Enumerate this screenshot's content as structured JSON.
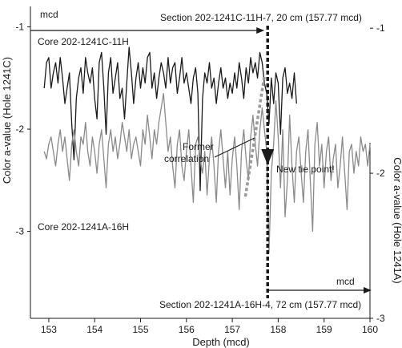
{
  "chart_data": {
    "type": "line",
    "xlabel": "Depth (mcd)",
    "ylabel_left": "Color a-value (Hole 1241C)",
    "ylabel_right": "Color a-value (Hole 1241A)",
    "xlim": [
      152.6,
      160
    ],
    "x_ticks": [
      153,
      154,
      155,
      156,
      157,
      158,
      159,
      160
    ],
    "left_ylim": [
      -3.85,
      -0.8
    ],
    "left_ticks": [
      -1,
      -2,
      -3
    ],
    "right_ylim": [
      -3.0,
      -0.85
    ],
    "right_ticks": [
      -1,
      -2,
      -3
    ],
    "annotations": {
      "mcd_top": "mcd",
      "section_top": "Section 202-1241C-11H-7, 20 cm (157.77 mcd)",
      "former_correlation_line1": "Former",
      "former_correlation_line2": "correlation",
      "new_tie_point": "New tie point!",
      "mcd_bottom": "mcd",
      "section_bottom": "Section 202-1241A-16H-4, 72 cm (157.77 mcd)"
    },
    "tie_point_depth": 157.77,
    "series": [
      {
        "name": "Core 202-1241C-11H",
        "axis": "left",
        "color": "#1a1a1a",
        "x": [
          152.9,
          152.95,
          153.0,
          153.05,
          153.1,
          153.15,
          153.2,
          153.25,
          153.3,
          153.35,
          153.4,
          153.45,
          153.5,
          153.55,
          153.6,
          153.65,
          153.7,
          153.75,
          153.8,
          153.85,
          153.9,
          153.95,
          154.0,
          154.05,
          154.1,
          154.15,
          154.2,
          154.25,
          154.3,
          154.35,
          154.4,
          154.45,
          154.5,
          154.55,
          154.6,
          154.65,
          154.7,
          154.75,
          154.8,
          154.85,
          154.9,
          154.95,
          155.0,
          155.05,
          155.1,
          155.15,
          155.2,
          155.25,
          155.3,
          155.35,
          155.4,
          155.45,
          155.5,
          155.55,
          155.6,
          155.65,
          155.7,
          155.75,
          155.8,
          155.85,
          155.9,
          155.95,
          156.0,
          156.05,
          156.1,
          156.15,
          156.2,
          156.25,
          156.3,
          156.35,
          156.4,
          156.45,
          156.5,
          156.55,
          156.6,
          156.65,
          156.7,
          156.75,
          156.8,
          156.85,
          156.9,
          156.95,
          157.0,
          157.05,
          157.1,
          157.15,
          157.2,
          157.25,
          157.3,
          157.35,
          157.4,
          157.45,
          157.5,
          157.55,
          157.6,
          157.65,
          157.7,
          157.75,
          157.8,
          157.85,
          157.9,
          157.95,
          158.0,
          158.05,
          158.1,
          158.15,
          158.2,
          158.25,
          158.3,
          158.35,
          158.4
        ],
        "values": [
          -1.6,
          -1.35,
          -1.3,
          -1.6,
          -1.45,
          -1.35,
          -1.55,
          -1.3,
          -1.5,
          -1.75,
          -1.6,
          -1.45,
          -1.95,
          -2.3,
          -1.7,
          -1.5,
          -1.4,
          -1.65,
          -1.3,
          -1.45,
          -1.55,
          -1.4,
          -1.7,
          -1.9,
          -1.35,
          -1.25,
          -1.6,
          -2.05,
          -1.45,
          -1.3,
          -1.65,
          -1.5,
          -1.35,
          -1.7,
          -1.6,
          -1.9,
          -1.55,
          -1.2,
          -1.45,
          -1.75,
          -1.5,
          -1.35,
          -1.6,
          -1.4,
          -1.55,
          -1.3,
          -1.25,
          -1.6,
          -1.45,
          -1.7,
          -1.5,
          -1.35,
          -1.45,
          -1.6,
          -1.3,
          -1.55,
          -1.4,
          -1.35,
          -1.65,
          -1.5,
          -1.3,
          -1.55,
          -1.45,
          -1.6,
          -1.75,
          -1.5,
          -1.4,
          -1.65,
          -2.6,
          -1.7,
          -1.45,
          -1.55,
          -1.35,
          -1.6,
          -1.5,
          -1.75,
          -1.55,
          -1.4,
          -1.6,
          -1.5,
          -1.7,
          -1.55,
          -1.65,
          -1.45,
          -1.6,
          -1.35,
          -1.5,
          -1.7,
          -1.4,
          -1.55,
          -1.3,
          -1.45,
          -1.35,
          -1.5,
          -1.25,
          -1.35,
          -1.55,
          -1.65,
          -1.95,
          -1.5,
          -1.75,
          -1.45,
          -1.55,
          -2.05,
          -1.5,
          -1.4,
          -1.65,
          -1.55,
          -1.7,
          -1.45,
          -1.75
        ]
      },
      {
        "name": "Core 202-1241A-16H",
        "axis": "right",
        "color": "#8a8a8a",
        "x": [
          152.9,
          152.95,
          153.0,
          153.05,
          153.1,
          153.15,
          153.2,
          153.25,
          153.3,
          153.35,
          153.4,
          153.45,
          153.5,
          153.55,
          153.6,
          153.65,
          153.7,
          153.75,
          153.8,
          153.85,
          153.9,
          153.95,
          154.0,
          154.05,
          154.1,
          154.15,
          154.2,
          154.25,
          154.3,
          154.35,
          154.4,
          154.45,
          154.5,
          154.55,
          154.6,
          154.65,
          154.7,
          154.75,
          154.8,
          154.85,
          154.9,
          154.95,
          155.0,
          155.05,
          155.1,
          155.15,
          155.2,
          155.25,
          155.3,
          155.35,
          155.4,
          155.45,
          155.5,
          155.55,
          155.6,
          155.65,
          155.7,
          155.75,
          155.8,
          155.85,
          155.9,
          155.95,
          156.0,
          156.05,
          156.1,
          156.15,
          156.2,
          156.25,
          156.3,
          156.35,
          156.4,
          156.45,
          156.5,
          156.55,
          156.6,
          156.65,
          156.7,
          156.75,
          156.8,
          156.85,
          156.9,
          156.95,
          157.0,
          157.05,
          157.1,
          157.15,
          157.2,
          157.25,
          157.3,
          157.35,
          157.4,
          157.45,
          157.5,
          157.55,
          157.6,
          157.65,
          157.7,
          157.75,
          157.8,
          157.85,
          157.9,
          157.95,
          158.0,
          158.05,
          158.1,
          158.15,
          158.2,
          158.25,
          158.3,
          158.35,
          158.4,
          158.45,
          158.5,
          158.55,
          158.6,
          158.65,
          158.7,
          158.75,
          158.8,
          158.85,
          158.9,
          158.95,
          159.0,
          159.05,
          159.1,
          159.15,
          159.2,
          159.25,
          159.3,
          159.35,
          159.4,
          159.45,
          159.5,
          159.55,
          159.6,
          159.65,
          159.7,
          159.75,
          159.8,
          159.85,
          159.9,
          159.95,
          160.0
        ],
        "values": [
          -1.85,
          -1.9,
          -1.8,
          -1.75,
          -1.85,
          -1.95,
          -1.8,
          -1.7,
          -1.85,
          -1.75,
          -1.9,
          -2.05,
          -1.8,
          -1.7,
          -1.85,
          -1.95,
          -1.75,
          -1.8,
          -1.65,
          -1.85,
          -1.95,
          -1.75,
          -1.85,
          -2.0,
          -1.8,
          -1.7,
          -1.9,
          -2.1,
          -1.8,
          -1.7,
          -1.85,
          -1.75,
          -1.9,
          -1.8,
          -1.65,
          -1.75,
          -1.85,
          -1.7,
          -1.9,
          -1.8,
          -1.75,
          -1.85,
          -1.95,
          -1.7,
          -1.8,
          -1.6,
          -1.75,
          -1.9,
          -1.7,
          -1.8,
          -1.65,
          -1.55,
          -1.45,
          -1.65,
          -1.85,
          -1.75,
          -1.95,
          -2.1,
          -1.8,
          -1.7,
          -1.95,
          -2.05,
          -1.85,
          -1.7,
          -1.95,
          -2.2,
          -1.8,
          -1.75,
          -1.9,
          -2.0,
          -1.85,
          -2.15,
          -1.9,
          -1.75,
          -1.95,
          -2.2,
          -1.85,
          -1.7,
          -1.9,
          -2.1,
          -1.85,
          -2.15,
          -1.9,
          -1.75,
          -1.95,
          -2.25,
          -1.85,
          -1.7,
          -1.9,
          -2.05,
          -1.75,
          -1.6,
          -1.8,
          -1.95,
          -1.7,
          -1.55,
          -1.7,
          -1.85,
          -2.55,
          -2.0,
          -1.8,
          -1.5,
          -1.75,
          -2.1,
          -1.7,
          -2.3,
          -2.05,
          -1.6,
          -1.95,
          -2.2,
          -1.85,
          -1.75,
          -2.0,
          -2.2,
          -1.85,
          -1.7,
          -2.05,
          -2.4,
          -1.8,
          -1.65,
          -1.95,
          -1.8,
          -2.1,
          -1.85,
          -1.75,
          -2.05,
          -1.9,
          -1.8,
          -2.1,
          -1.95,
          -1.75,
          -2.0,
          -2.25,
          -1.85,
          -1.8,
          -2.0,
          -1.85,
          -1.95,
          -1.75,
          -1.85,
          -1.8,
          -1.95,
          -1.8
        ]
      }
    ]
  }
}
